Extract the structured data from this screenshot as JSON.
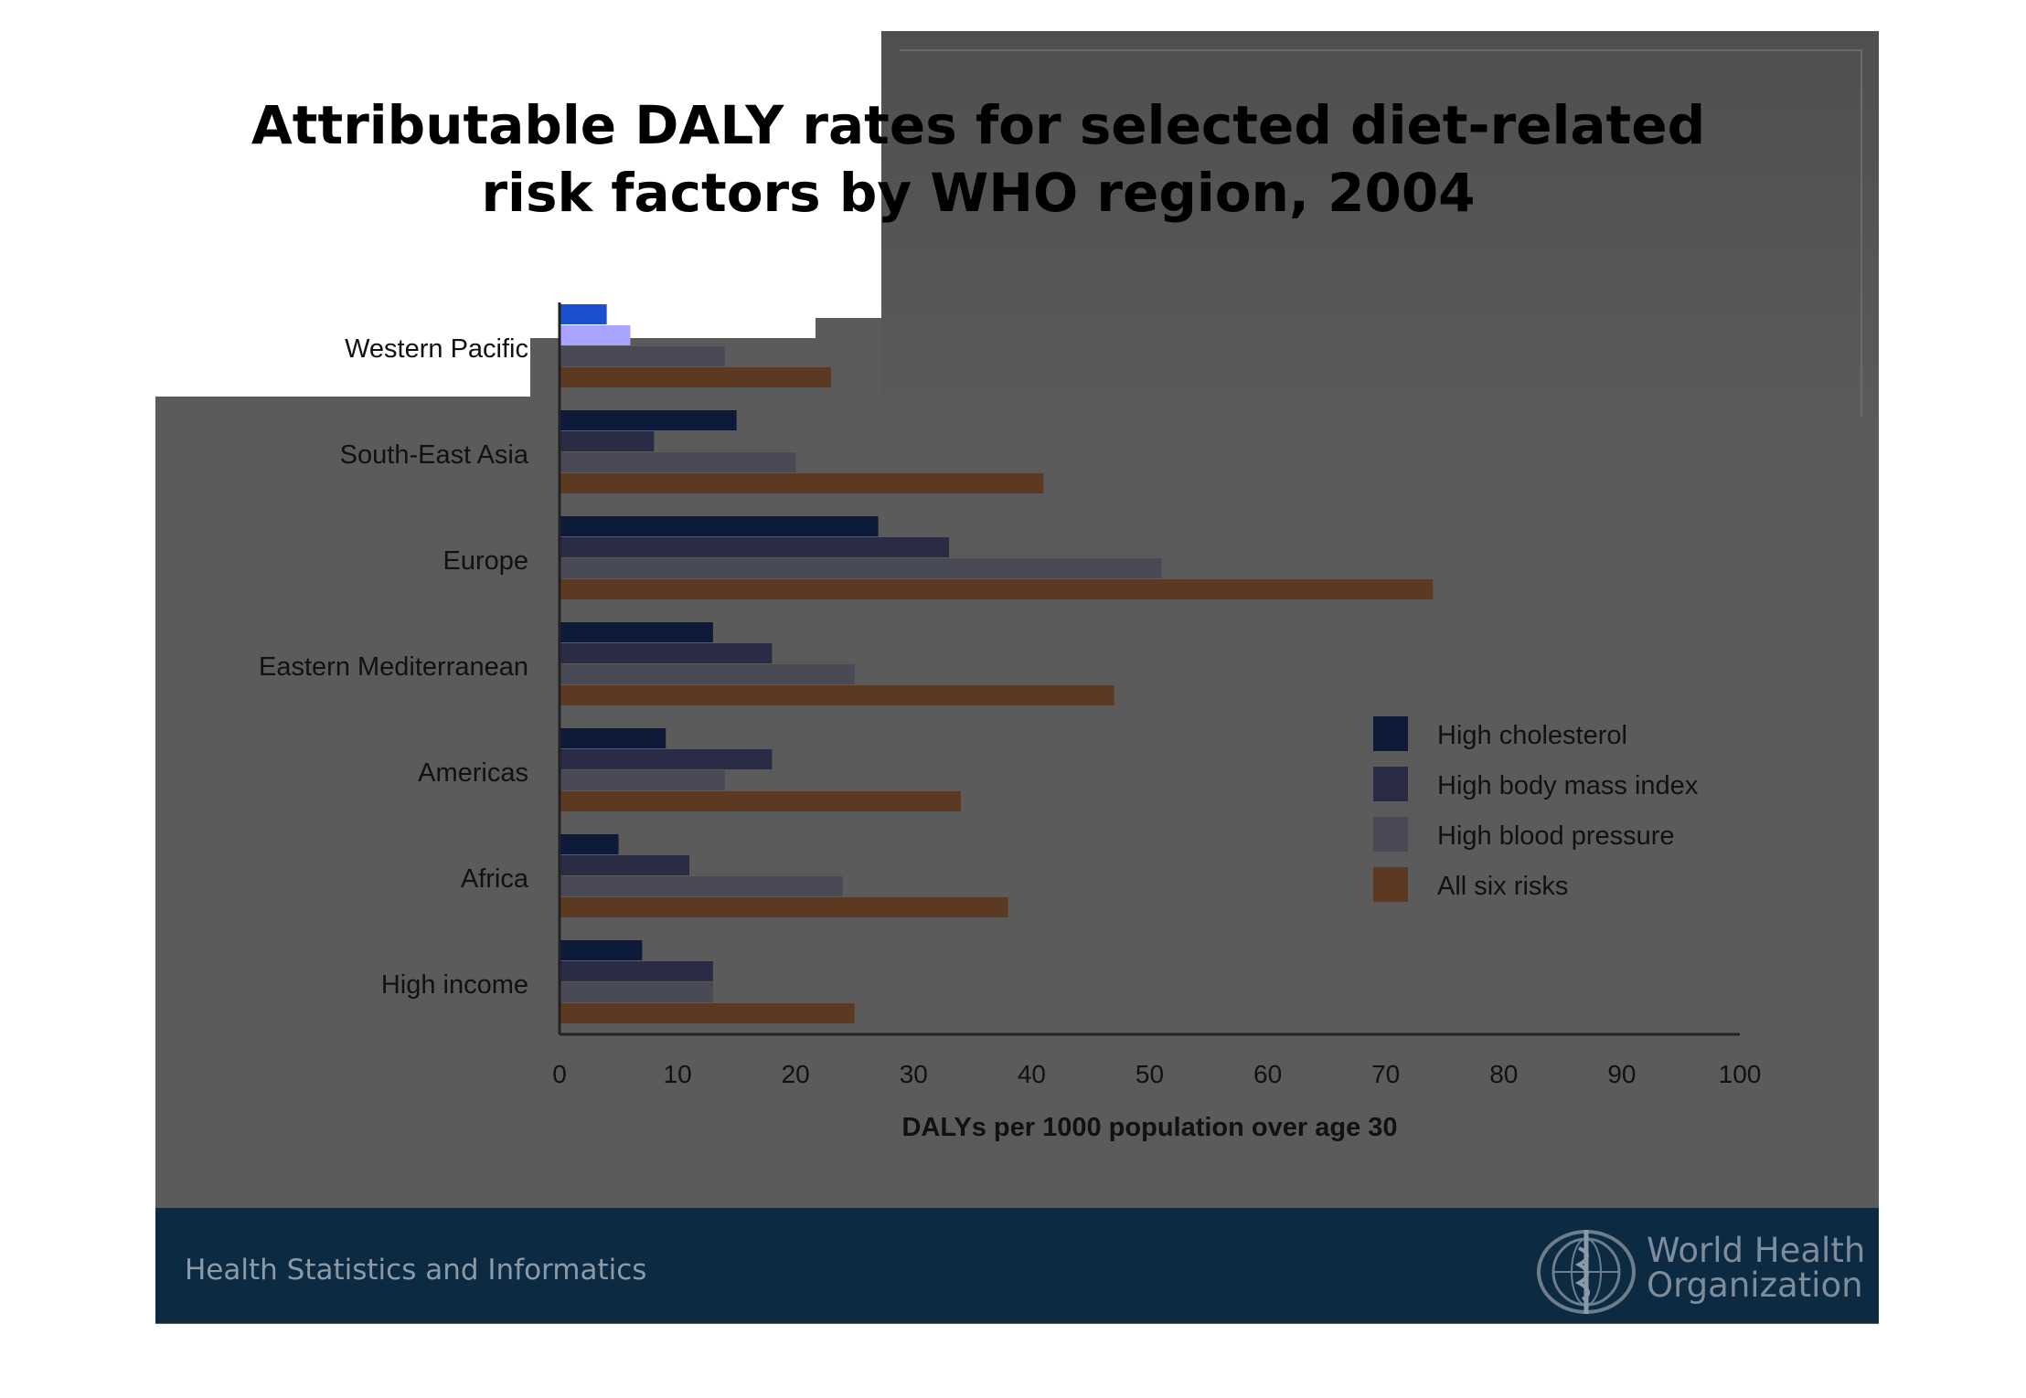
{
  "title_line1": "Attributable DALY rates for selected diet-related",
  "title_line2": "risk factors by WHO region, 2004",
  "footer": {
    "text": "Health Statistics and Informatics",
    "org_line1": "World Health",
    "org_line2": "Organization"
  },
  "colors": {
    "slide_bg": "#5b5b5b",
    "footer_bg": "#0c2a42",
    "high_cholesterol": "#0d1a3a",
    "high_bmi": "#2a2b45",
    "high_bp": "#4a4a56",
    "all_six": "#5c3a22"
  },
  "chart_data": {
    "type": "bar",
    "orientation": "horizontal",
    "categories": [
      "Western Pacific",
      "South-East Asia",
      "Europe",
      "Eastern Mediterranean",
      "Americas",
      "Africa",
      "High income"
    ],
    "series": [
      {
        "name": "High cholesterol",
        "color": "#0d1a3a",
        "values": [
          4,
          15,
          27,
          13,
          9,
          5,
          7
        ]
      },
      {
        "name": "High body mass index",
        "color": "#2a2b45",
        "values": [
          6,
          8,
          33,
          18,
          18,
          11,
          13
        ]
      },
      {
        "name": "High blood pressure",
        "color": "#4a4a56",
        "values": [
          14,
          20,
          51,
          25,
          14,
          24,
          13
        ]
      },
      {
        "name": "All six risks",
        "color": "#5c3a22",
        "values": [
          23,
          41,
          74,
          47,
          34,
          38,
          25
        ]
      }
    ],
    "xlabel": "DALYs per 1000 population over age 30",
    "xlim": [
      0,
      100
    ],
    "xticks": [
      "0",
      "10",
      "20",
      "30",
      "40",
      "50",
      "60",
      "70",
      "80",
      "90",
      "100"
    ],
    "legend_position": "right",
    "grid": false
  }
}
